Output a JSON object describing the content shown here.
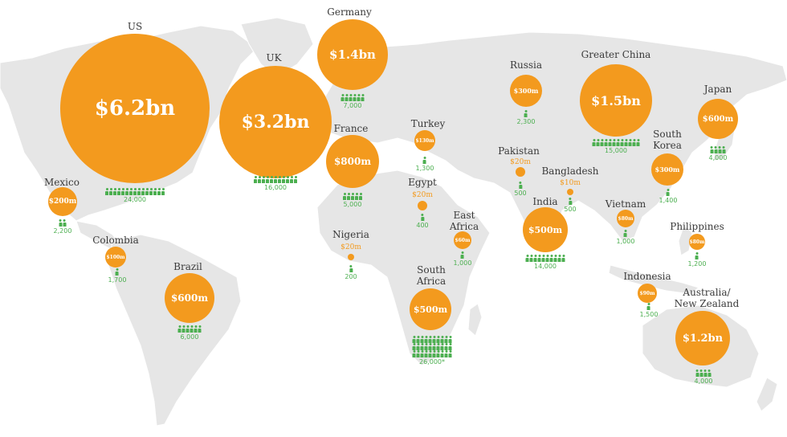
{
  "colors": {
    "bubble": "#f39a1e",
    "people": "#4caf50",
    "land": "#e6e6e6"
  },
  "icon": "person-icon",
  "countries": [
    {
      "id": "us",
      "name": "US",
      "amount": "$6.2bn",
      "people": "24,000"
    },
    {
      "id": "uk",
      "name": "UK",
      "amount": "$3.2bn",
      "people": "16,000"
    },
    {
      "id": "germany",
      "name": "Germany",
      "amount": "$1.4bn",
      "people": "7,000"
    },
    {
      "id": "france",
      "name": "France",
      "amount": "$800m",
      "people": "5,000"
    },
    {
      "id": "russia",
      "name": "Russia",
      "amount": "$300m",
      "people": "2,300"
    },
    {
      "id": "greater-china",
      "name": "Greater China",
      "amount": "$1.5bn",
      "people": "15,000"
    },
    {
      "id": "japan",
      "name": "Japan",
      "amount": "$600m",
      "people": "4,000"
    },
    {
      "id": "south-korea",
      "name": "South Korea",
      "amount": "$300m",
      "people": "1,400"
    },
    {
      "id": "turkey",
      "name": "Turkey",
      "amount": "$130m",
      "people": "1,300"
    },
    {
      "id": "pakistan",
      "name": "Pakistan",
      "amount": "$20m",
      "people": "500"
    },
    {
      "id": "egypt",
      "name": "Egypt",
      "amount": "$20m",
      "people": "400"
    },
    {
      "id": "bangladesh",
      "name": "Bangladesh",
      "amount": "$10m",
      "people": "500"
    },
    {
      "id": "india",
      "name": "India",
      "amount": "$500m",
      "people": "14,000"
    },
    {
      "id": "vietnam",
      "name": "Vietnam",
      "amount": "$80m",
      "people": "1,000"
    },
    {
      "id": "philippines",
      "name": "Philippines",
      "amount": "$80m",
      "people": "1,200"
    },
    {
      "id": "east-africa",
      "name": "East Africa",
      "amount": "$60m",
      "people": "1,000"
    },
    {
      "id": "nigeria",
      "name": "Nigeria",
      "amount": "$20m",
      "people": "200"
    },
    {
      "id": "south-africa",
      "name": "South Africa",
      "amount": "$500m",
      "people": "26,000*"
    },
    {
      "id": "indonesia",
      "name": "Indonesia",
      "amount": "$90m",
      "people": "1,500"
    },
    {
      "id": "australia-nz",
      "name": "Australia/ New Zealand",
      "amount": "$1.2bn",
      "people": "4,000"
    },
    {
      "id": "mexico",
      "name": "Mexico",
      "amount": "$200m",
      "people": "2,200"
    },
    {
      "id": "colombia",
      "name": "Colombia",
      "amount": "$100m",
      "people": "1,700"
    },
    {
      "id": "brazil",
      "name": "Brazil",
      "amount": "$600m",
      "people": "6,000"
    }
  ]
}
